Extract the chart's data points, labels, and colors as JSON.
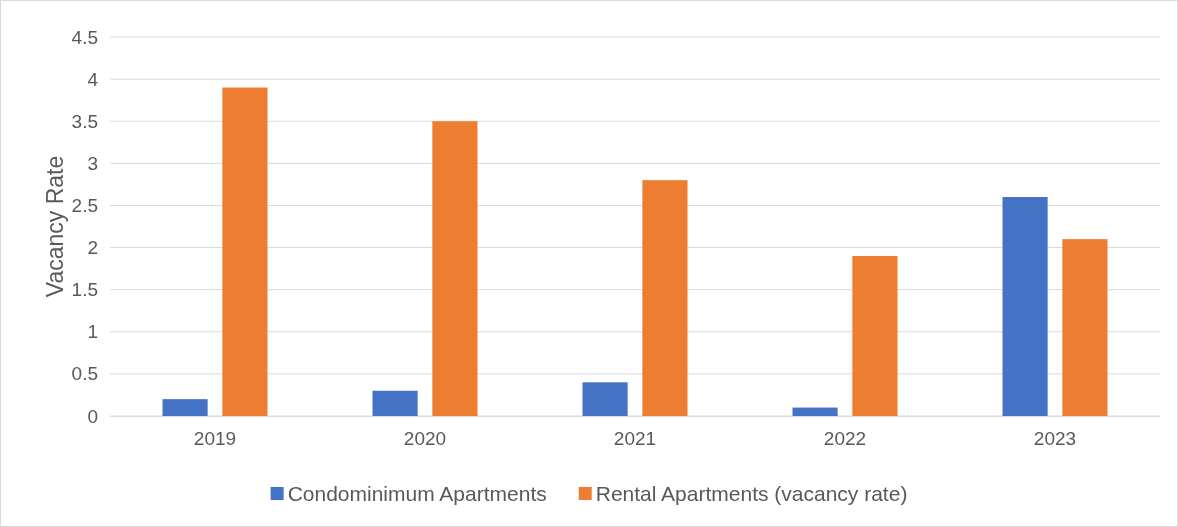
{
  "chart_data": {
    "type": "bar",
    "ylabel": "Vacancy Rate",
    "categories": [
      "2019",
      "2020",
      "2021",
      "2022",
      "2023"
    ],
    "series": [
      {
        "name": "Condominimum Apartments",
        "color": "#4472c4",
        "values": [
          0.2,
          0.3,
          0.4,
          0.1,
          2.6
        ]
      },
      {
        "name": "Rental Apartments (vacancy rate)",
        "color": "#ed7d31",
        "values": [
          3.9,
          3.5,
          2.8,
          1.9,
          2.1
        ]
      }
    ],
    "ylim": [
      0,
      4.5
    ],
    "yticks": [
      0,
      0.5,
      1,
      1.5,
      2,
      2.5,
      3,
      3.5,
      4,
      4.5
    ],
    "grid": "y",
    "legend": "bottom"
  }
}
